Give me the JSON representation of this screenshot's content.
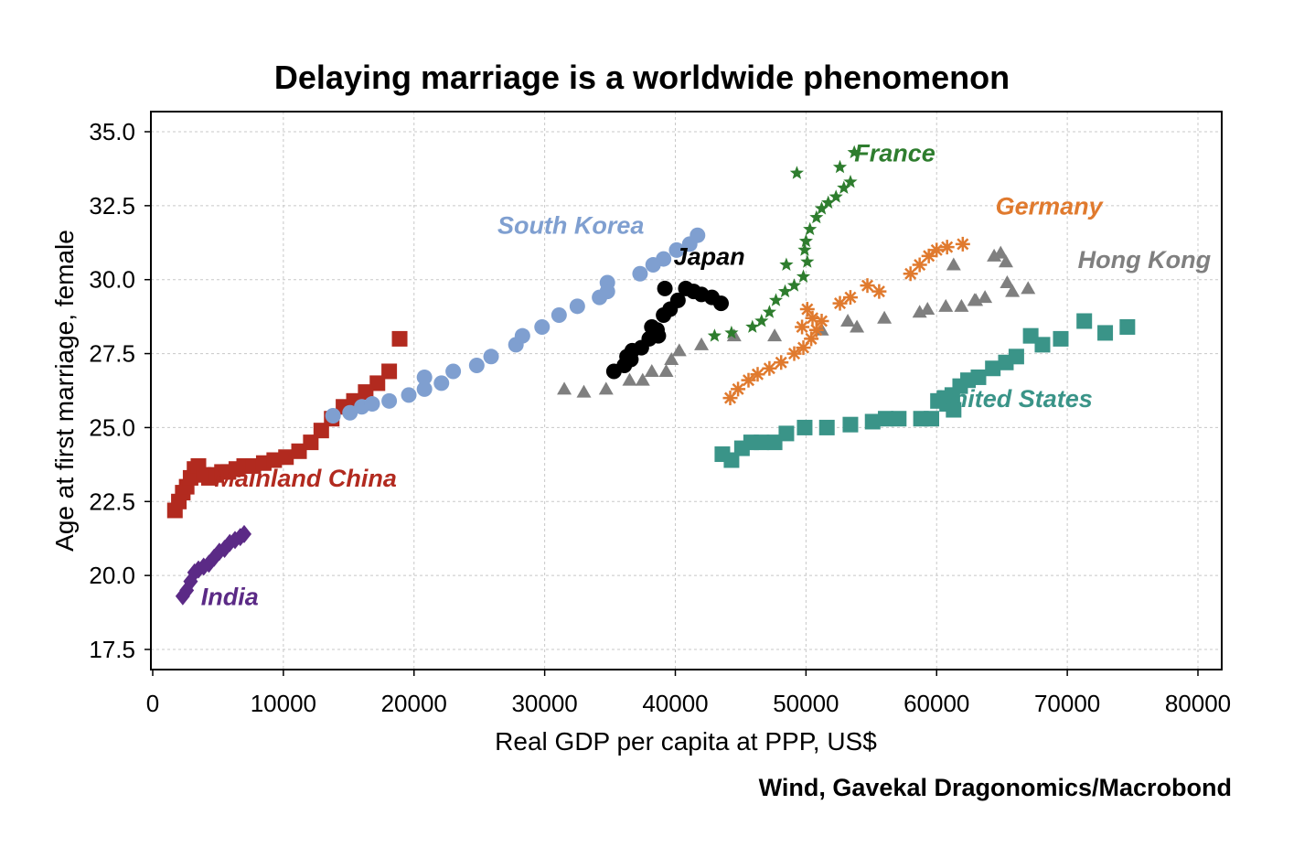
{
  "chart_data": {
    "type": "scatter",
    "title": "Delaying marriage is a worldwide phenomenon",
    "xlabel": "Real GDP per capita at PPP, US$",
    "ylabel": "Age at first marriage, female",
    "source": "Wind, Gavekal Dragonomics/Macrobond",
    "xlim": [
      0,
      80000
    ],
    "ylim": [
      16.5,
      35.5
    ],
    "xticks": [
      0,
      10000,
      20000,
      30000,
      40000,
      50000,
      60000,
      70000,
      80000
    ],
    "yticks": [
      17.5,
      20.0,
      22.5,
      25.0,
      27.5,
      30.0,
      32.5,
      35.0
    ],
    "ytick_labels": [
      "17.5",
      "20.0",
      "22.5",
      "25.0",
      "27.5",
      "30.0",
      "32.5",
      "35.0"
    ],
    "grid": true,
    "series": [
      {
        "name": "Mainland China",
        "color": "#b22a1f",
        "marker": "square",
        "x": [
          1700,
          2000,
          2300,
          2600,
          2900,
          3200,
          3500,
          3900,
          4300,
          4800,
          5300,
          5800,
          6400,
          7000,
          7700,
          8500,
          9300,
          10200,
          11200,
          12100,
          12900,
          13700,
          14600,
          15400,
          16300,
          17200,
          18100,
          18900
        ],
        "y": [
          22.2,
          22.5,
          22.8,
          23.0,
          23.3,
          23.6,
          23.7,
          23.4,
          23.3,
          23.4,
          23.5,
          23.5,
          23.6,
          23.7,
          23.7,
          23.8,
          23.9,
          24.0,
          24.2,
          24.5,
          24.9,
          25.3,
          25.7,
          25.9,
          26.2,
          26.5,
          26.9,
          28.0
        ]
      },
      {
        "name": "India",
        "color": "#5b2a86",
        "marker": "diamond",
        "x": [
          2300,
          2600,
          2900,
          3200,
          3500,
          3900,
          4300,
          4700,
          5100,
          5500,
          5900,
          6300,
          6700,
          7000
        ],
        "y": [
          19.3,
          19.5,
          19.8,
          20.1,
          20.2,
          20.3,
          20.4,
          20.6,
          20.8,
          20.9,
          21.1,
          21.2,
          21.3,
          21.4
        ]
      },
      {
        "name": "South Korea",
        "color": "#7f9fd0",
        "marker": "circle",
        "x": [
          13800,
          15100,
          16000,
          16800,
          18100,
          19600,
          20800,
          22100,
          23000,
          24800,
          25900,
          27800,
          28300,
          29800,
          31100,
          32500,
          34200,
          34800,
          37300,
          38300,
          39100,
          40100,
          41100,
          41700
        ],
        "y": [
          25.4,
          25.5,
          25.7,
          25.8,
          25.9,
          26.1,
          26.3,
          26.5,
          26.9,
          27.1,
          27.4,
          27.8,
          28.1,
          28.4,
          28.8,
          29.1,
          29.4,
          29.9,
          30.2,
          30.5,
          30.7,
          31.0,
          31.2,
          31.5
        ],
        "extra_points": [
          [
            20800,
            26.7
          ],
          [
            34800,
            29.6
          ]
        ]
      },
      {
        "name": "Japan",
        "color": "#000000",
        "marker": "circle",
        "x": [
          35300,
          36100,
          36300,
          36700,
          37400,
          38000,
          38200,
          38600,
          39100,
          39600,
          40200,
          40800,
          41400,
          42000,
          42800,
          43500,
          39200,
          38700,
          36600
        ],
        "y": [
          26.9,
          27.1,
          27.4,
          27.6,
          27.7,
          28.0,
          28.4,
          28.3,
          28.8,
          29.0,
          29.3,
          29.7,
          29.6,
          29.5,
          29.4,
          29.2,
          29.7,
          28.1,
          27.3
        ]
      },
      {
        "name": "Hong Kong",
        "color": "#7f7f7f",
        "marker": "triangle",
        "x": [
          31500,
          33000,
          34700,
          36500,
          37500,
          38200,
          39300,
          39700,
          40300,
          42000,
          44500,
          47600,
          51200,
          53200,
          53900,
          56000,
          58700,
          59300,
          60700,
          61900,
          63000,
          63700,
          64400,
          64900,
          65400,
          65800,
          67000,
          61300,
          65300,
          62900
        ],
        "y": [
          26.3,
          26.2,
          26.3,
          26.6,
          26.6,
          26.9,
          26.9,
          27.3,
          27.6,
          27.8,
          28.1,
          28.1,
          28.3,
          28.6,
          28.4,
          28.7,
          28.9,
          29.0,
          29.1,
          29.1,
          29.3,
          29.4,
          30.8,
          30.9,
          29.9,
          29.6,
          29.7,
          30.5,
          30.6,
          29.3
        ]
      },
      {
        "name": "France",
        "color": "#2e7d2e",
        "marker": "star",
        "x": [
          43000,
          44300,
          45900,
          46600,
          47200,
          47700,
          48400,
          49100,
          49800,
          50100,
          49900,
          50300,
          50800,
          51200,
          51700,
          52300,
          52900,
          53400,
          53700,
          52600,
          49300,
          48500,
          50000
        ],
        "y": [
          28.1,
          28.2,
          28.4,
          28.6,
          28.9,
          29.3,
          29.6,
          29.8,
          30.1,
          30.6,
          31.0,
          31.7,
          32.1,
          32.4,
          32.6,
          32.8,
          33.1,
          33.3,
          34.3,
          33.8,
          33.6,
          30.5,
          31.3
        ]
      },
      {
        "name": "Germany",
        "color": "#e07a2e",
        "marker": "asterisk",
        "x": [
          44200,
          44800,
          45600,
          46300,
          47200,
          48100,
          49100,
          49800,
          50400,
          50800,
          51200,
          52600,
          53400,
          54700,
          55600,
          58000,
          58700,
          59400,
          60000,
          60800,
          62000,
          50100,
          50500,
          49700
        ],
        "y": [
          26.0,
          26.3,
          26.6,
          26.8,
          27.0,
          27.2,
          27.5,
          27.7,
          28.0,
          28.3,
          28.6,
          29.2,
          29.4,
          29.8,
          29.6,
          30.2,
          30.5,
          30.8,
          31.0,
          31.1,
          31.2,
          29.0,
          28.7,
          28.4
        ]
      },
      {
        "name": "United States",
        "color": "#3a9488",
        "marker": "square",
        "x": [
          43600,
          44300,
          45100,
          45800,
          46600,
          47600,
          48500,
          49900,
          51600,
          53400,
          55100,
          56100,
          57100,
          58800,
          59600,
          60100,
          60600,
          61200,
          61800,
          62400,
          63200,
          64300,
          65300,
          66100,
          67200,
          68100,
          69500,
          71300,
          72900,
          74600,
          61300,
          60800
        ],
        "y": [
          24.1,
          23.9,
          24.3,
          24.5,
          24.5,
          24.5,
          24.8,
          25.0,
          25.0,
          25.1,
          25.2,
          25.3,
          25.3,
          25.3,
          25.3,
          25.9,
          26.0,
          26.1,
          26.4,
          26.6,
          26.7,
          27.0,
          27.2,
          27.4,
          28.1,
          27.8,
          28.0,
          28.6,
          28.2,
          28.4,
          25.6,
          25.8
        ]
      }
    ],
    "annotations": [
      {
        "text": "South Korea",
        "series": "South Korea",
        "x": 32000,
        "y": 31.55
      },
      {
        "text": "Japan",
        "series": "Japan",
        "x": 42600,
        "y": 30.5
      },
      {
        "text": "France",
        "series": "France",
        "x": 56800,
        "y": 34.0
      },
      {
        "text": "Germany",
        "series": "Germany",
        "x": 68600,
        "y": 32.2
      },
      {
        "text": "Hong Kong",
        "series": "Hong Kong",
        "x": 75900,
        "y": 30.4
      },
      {
        "text": "Mainland China",
        "series": "Mainland China",
        "x": 11700,
        "y": 23.0
      },
      {
        "text": "India",
        "series": "India",
        "x": 5900,
        "y": 19.0
      },
      {
        "text": "United States",
        "series": "United States",
        "x": 65900,
        "y": 25.7
      }
    ]
  }
}
